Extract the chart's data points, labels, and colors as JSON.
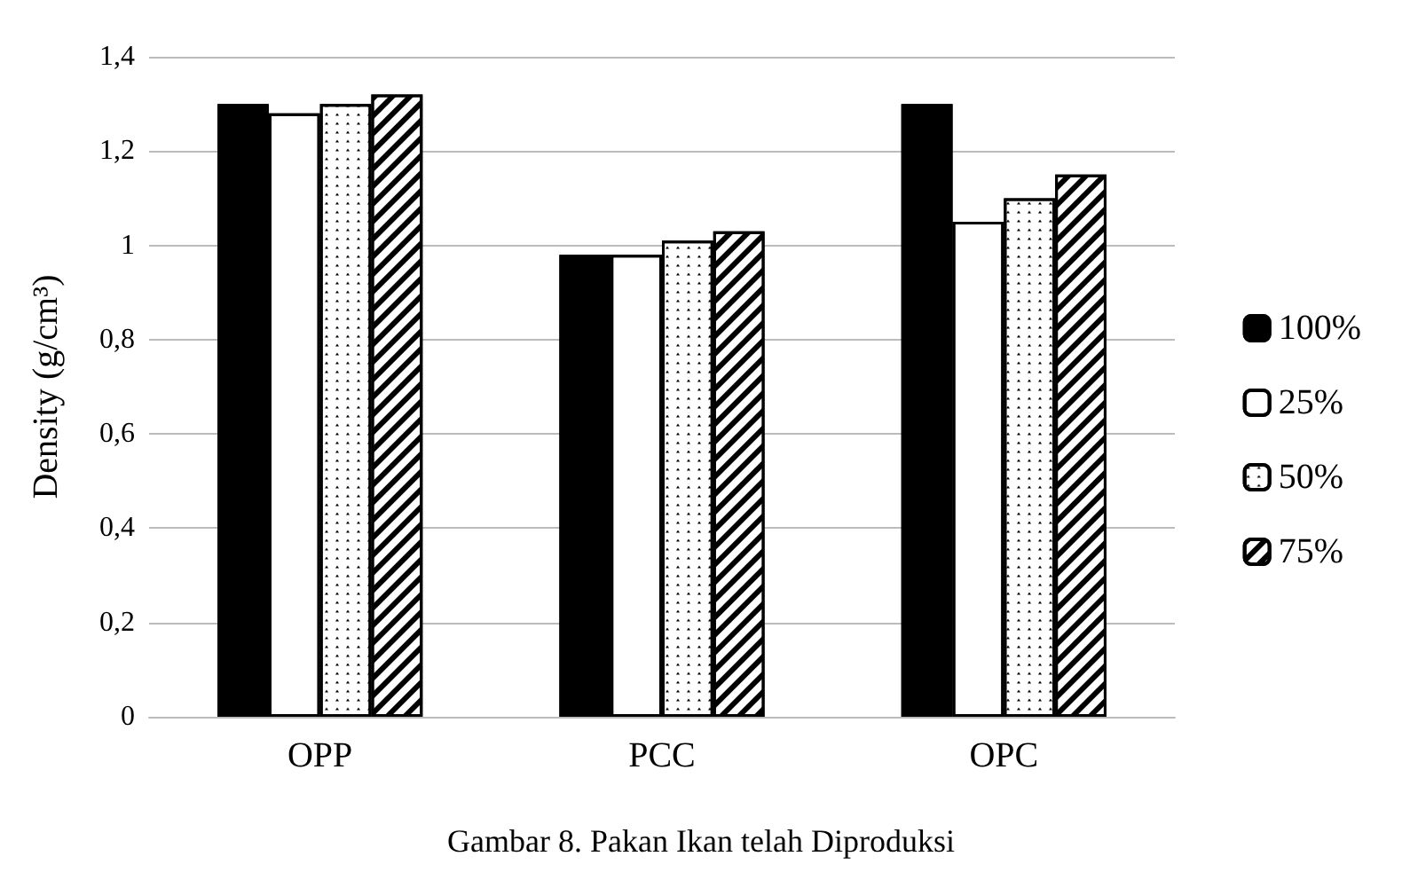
{
  "chart_data": {
    "type": "bar",
    "title": "Gambar 8. Pakan Ikan telah Diproduksi",
    "ylabel": "Density (g/cm³)",
    "categories": [
      "OPP",
      "PCC",
      "OPC"
    ],
    "series": [
      {
        "name": "100%",
        "color": "#000000",
        "values": [
          1.3,
          0.98,
          1.3
        ]
      },
      {
        "name": "25%",
        "color": "#ffffff",
        "values": [
          1.28,
          0.98,
          1.05
        ]
      },
      {
        "name": "50%",
        "color": "#ffffff",
        "values": [
          1.3,
          1.01,
          1.1
        ]
      },
      {
        "name": "75%",
        "color": "#ffffff",
        "values": [
          1.32,
          1.03,
          1.15
        ]
      }
    ],
    "ylim": [
      0,
      1.4
    ],
    "yticks": [
      0,
      {
        "value": 0.2,
        "label": "0,2"
      },
      {
        "value": 0.4,
        "label": "0,4"
      },
      {
        "value": 0.6,
        "label": "0,6"
      },
      {
        "value": 0.8,
        "label": "0,8"
      },
      1,
      {
        "value": 1.2,
        "label": "1,2"
      },
      {
        "value": 1.4,
        "label": "1,4"
      }
    ],
    "grid": "y",
    "legend": "right"
  }
}
